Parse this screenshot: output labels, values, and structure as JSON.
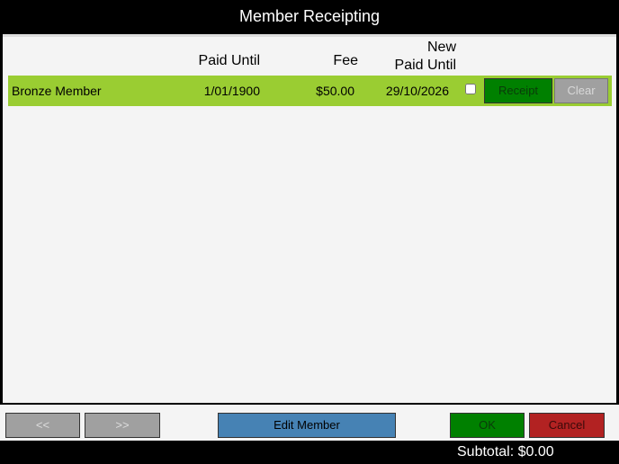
{
  "header": {
    "title": "Member Receipting"
  },
  "table": {
    "columns": [
      "Paid Until",
      "Fee",
      "New\nPaid Until"
    ],
    "rows": [
      [
        "Bronze Member",
        "1/01/1900",
        "$50.00",
        "29/10/2026"
      ]
    ]
  },
  "buttons": {
    "receipt": "Receipt",
    "clear": "Clear",
    "prev": "<<",
    "next": ">>",
    "edit_member": "Edit Member",
    "ok": "OK",
    "cancel": "Cancel"
  },
  "footer": {
    "subtotal": "Subtotal: $0.00"
  }
}
